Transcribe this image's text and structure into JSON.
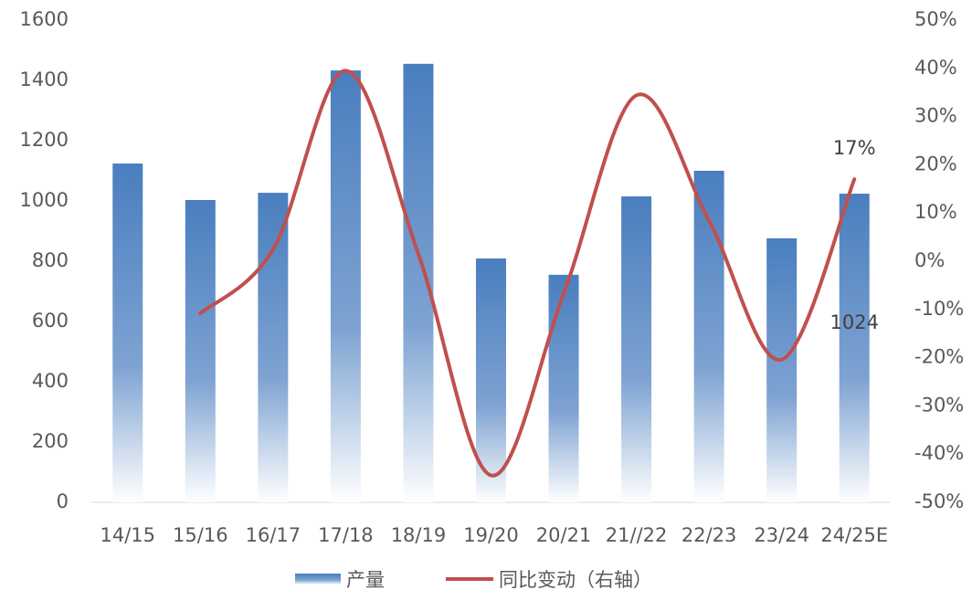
{
  "chart_data": {
    "type": "bar_line",
    "categories": [
      "14/15",
      "15/16",
      "16/17",
      "17/18",
      "18/19",
      "19/20",
      "20/21",
      "21//22",
      "22/23",
      "23/24",
      "24/25E"
    ],
    "series": [
      {
        "name": "产量",
        "type": "bar",
        "color": "#4a7ebf",
        "values": [
          1124,
          1003,
          1027,
          1433,
          1455,
          809,
          755,
          1015,
          1100,
          876,
          1024
        ],
        "value_labels": [
          null,
          null,
          null,
          null,
          null,
          null,
          null,
          null,
          null,
          null,
          "1024"
        ]
      },
      {
        "name": "同比变动（右轴）",
        "type": "line",
        "axis": "y2",
        "color": "#c0504d",
        "values": [
          null,
          -10.8,
          2.4,
          39.5,
          1.5,
          -44.4,
          -6.7,
          34.4,
          8.4,
          -20.4,
          17
        ],
        "value_labels": [
          null,
          null,
          null,
          null,
          null,
          null,
          null,
          null,
          null,
          null,
          "17%"
        ]
      }
    ],
    "ylim": [
      0,
      1600
    ],
    "yticks": [
      0,
      200,
      400,
      600,
      800,
      1000,
      1200,
      1400,
      1600
    ],
    "y2lim": [
      -50,
      50
    ],
    "y2ticks": [
      {
        "value": -50,
        "label": "-50%"
      },
      {
        "value": -40,
        "label": "-40%"
      },
      {
        "value": -30,
        "label": "-30%"
      },
      {
        "value": -20,
        "label": "-20%"
      },
      {
        "value": -10,
        "label": "-10%"
      },
      {
        "value": 0,
        "label": "0%"
      },
      {
        "value": 10,
        "label": "10%"
      },
      {
        "value": 20,
        "label": "20%"
      },
      {
        "value": 30,
        "label": "30%"
      },
      {
        "value": 40,
        "label": "40%"
      },
      {
        "value": 50,
        "label": "50%"
      }
    ],
    "legend": "bottom"
  }
}
